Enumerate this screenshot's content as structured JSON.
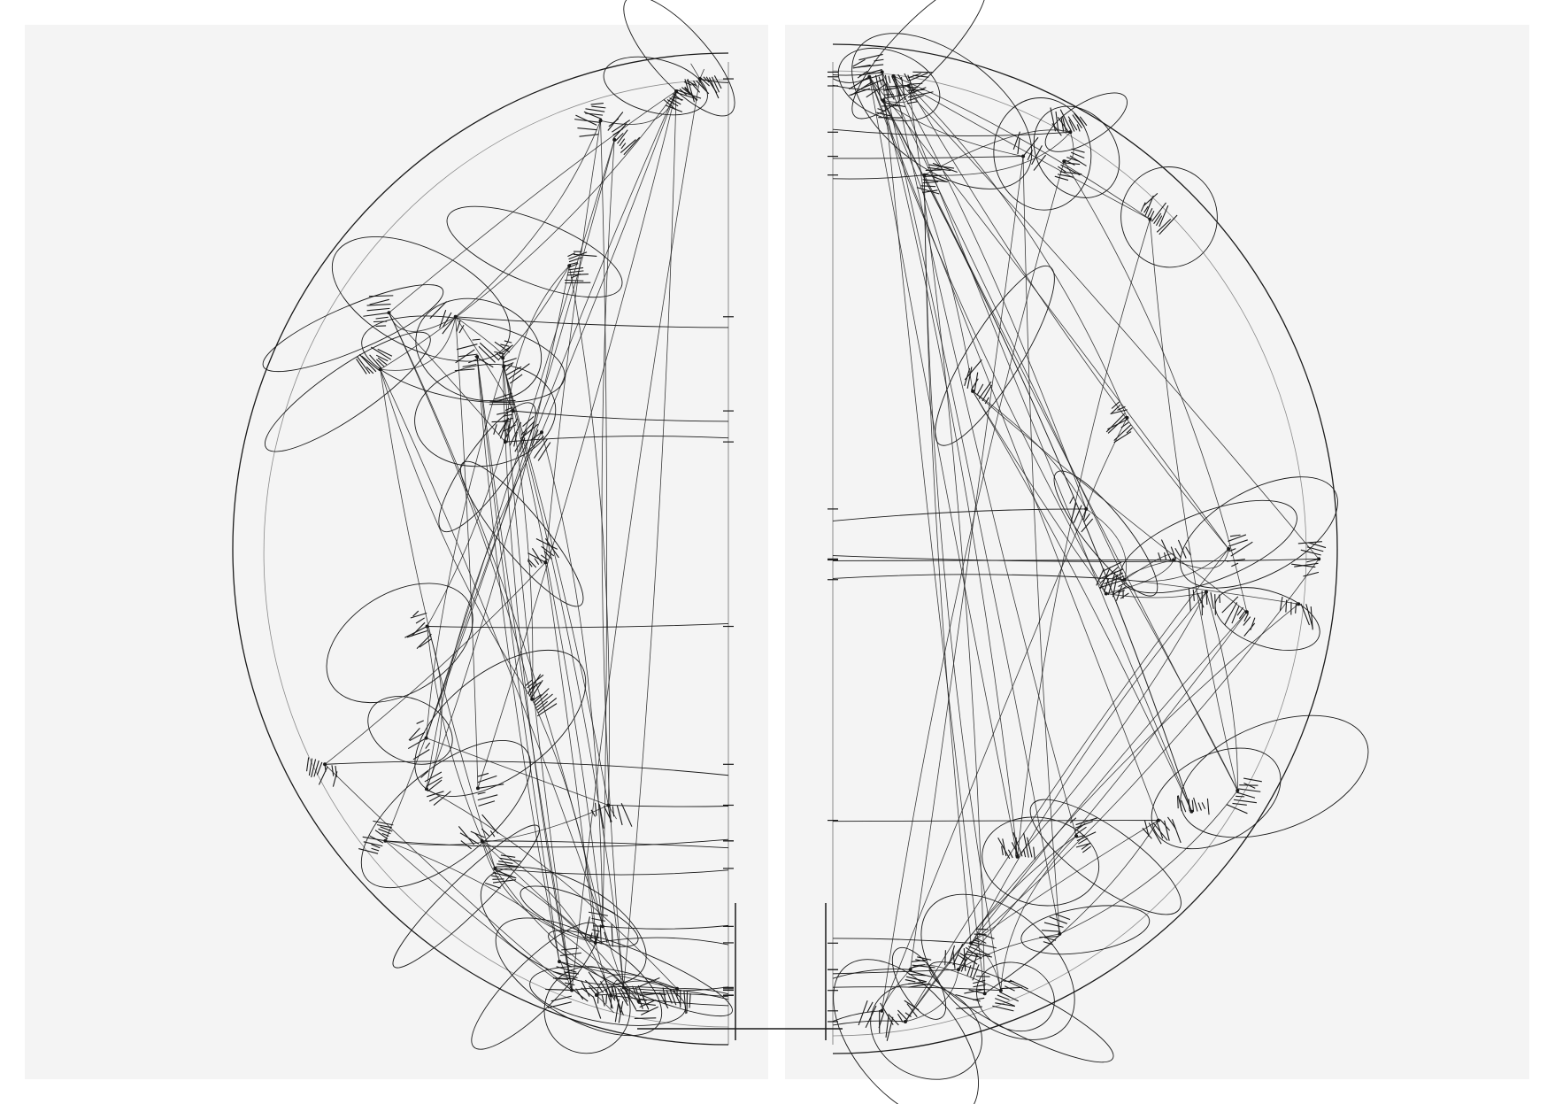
{
  "colors": {
    "background": "#ffffff",
    "panel": "#f4f4f4",
    "ink": "#1a1a1a",
    "ink_light": "#8a8a8a"
  }
}
